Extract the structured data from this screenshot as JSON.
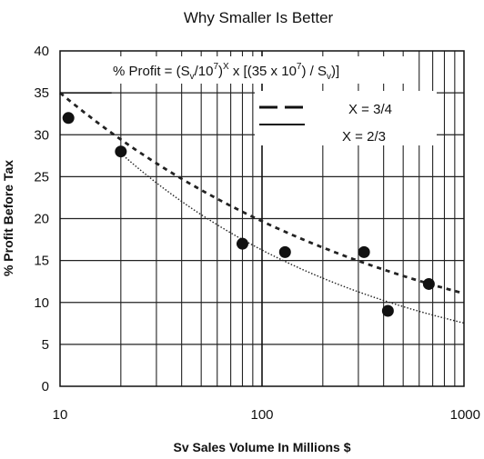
{
  "chart_data": {
    "type": "scatter",
    "title": "Why Smaller Is Better",
    "xlabel": "Sv Sales Volume In Millions $",
    "ylabel": "% Profit Before Tax",
    "x_scale": "log",
    "xlim": [
      10,
      1000
    ],
    "ylim": [
      0,
      40
    ],
    "x_ticks": [
      "10",
      "100",
      "1000"
    ],
    "y_ticks": [
      "0",
      "5",
      "10",
      "15",
      "20",
      "25",
      "30",
      "35",
      "40"
    ],
    "grid": true,
    "formula": {
      "prefix": "% Profit = (S",
      "sub1": "v",
      "mid1": "/10",
      "sup1": "7",
      "mid2": ")",
      "sup2": "X",
      "mid3": " x [(35 x 10",
      "sup3": "7",
      "mid4": ") / S",
      "sub2": "v",
      "suffix": ")]"
    },
    "legend_labels": [
      "X = 3/4",
      "X = 2/3"
    ],
    "points": [
      {
        "x": 11,
        "y": 32
      },
      {
        "x": 20,
        "y": 28
      },
      {
        "x": 80,
        "y": 17
      },
      {
        "x": 130,
        "y": 16
      },
      {
        "x": 320,
        "y": 16
      },
      {
        "x": 420,
        "y": 9
      },
      {
        "x": 670,
        "y": 12.2
      }
    ],
    "series": [
      {
        "exponent": 0.75,
        "style": "dashed",
        "x_range": [
          10,
          1000
        ]
      },
      {
        "exponent": 0.6667,
        "style": "dotted",
        "x_range": [
          20,
          1000
        ]
      }
    ],
    "reference_line": {
      "y": 35,
      "x_range": [
        10,
        18
      ]
    }
  }
}
